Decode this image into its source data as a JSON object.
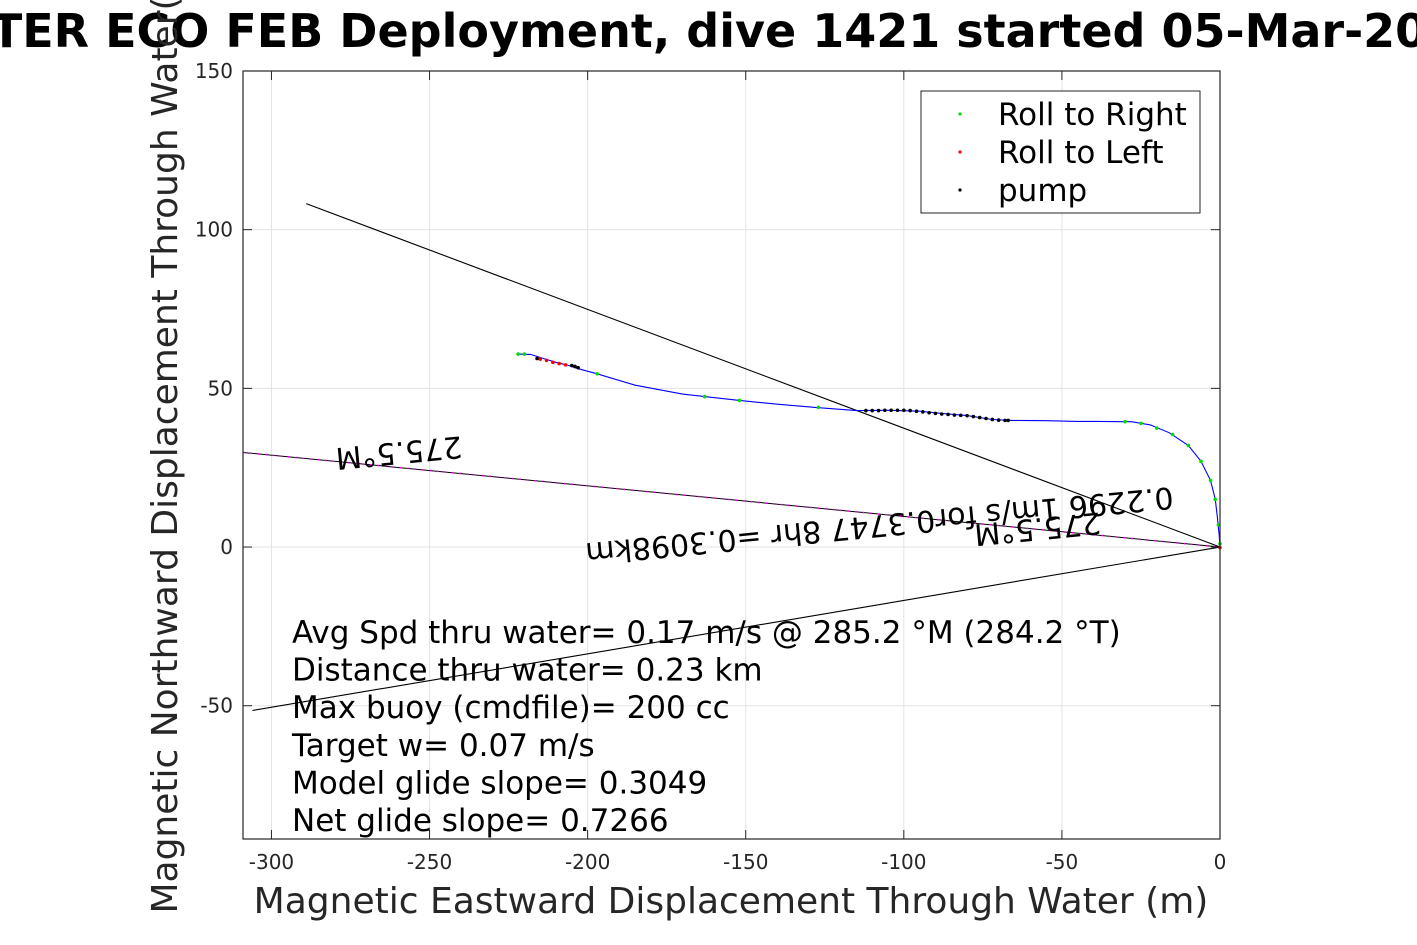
{
  "chart_data": {
    "type": "scatter",
    "title": "TER ECO FEB Deployment, dive 1421 started 05-Mar-20",
    "xlabel": "Magnetic Eastward Displacement Through Water (m)",
    "ylabel": "Magnetic Northward Displacement Through Water(",
    "xlim": [
      -309,
      0
    ],
    "ylim": [
      -92,
      150
    ],
    "xticks": [
      -300,
      -250,
      -200,
      -150,
      -100,
      -50,
      0
    ],
    "yticks": [
      -50,
      0,
      50,
      100,
      150
    ],
    "xtick_labels": [
      "-300",
      "-250",
      "-200",
      "-150",
      "-100",
      "-50",
      "0"
    ],
    "ytick_labels": [
      "-50",
      "0",
      "50",
      "100",
      "150"
    ],
    "grid": true,
    "legend_position": "top-right",
    "legend": [
      "Roll to Right",
      "Roll to Left",
      "pump"
    ],
    "colors": {
      "track": "#0000ff",
      "roll_right": "#00dd00",
      "roll_left": "#ff0000",
      "pump": "#000000",
      "heading_line": "#ff00ff",
      "reference_line": "#000000",
      "grid": "#e3e3e3",
      "axis": "#262626"
    },
    "track": {
      "x": [
        -222,
        -218,
        -214,
        -210,
        -206,
        -203,
        -197,
        -185,
        -170,
        -163,
        -152,
        -140,
        -128,
        -115,
        -105,
        -95,
        -88,
        -80,
        -72,
        -66,
        -55,
        -45,
        -38,
        -32,
        -28,
        -22,
        -16,
        -10,
        -6,
        -3,
        -1.5,
        -0.8,
        -0.3,
        0
      ],
      "y": [
        60.8,
        60.7,
        59.4,
        58.2,
        57.2,
        56.2,
        54.6,
        51,
        48.2,
        47.4,
        46.2,
        45,
        44,
        43,
        43.1,
        42.8,
        42.1,
        41.4,
        40.2,
        39.9,
        39.8,
        39.6,
        39.6,
        39.5,
        39.5,
        38.5,
        36,
        32,
        27,
        21,
        15,
        9,
        4,
        0
      ]
    },
    "roll_right": {
      "x": [
        -222,
        -220,
        -197,
        -163,
        -152,
        -127,
        -30,
        -25,
        -20,
        -15,
        -10,
        -6,
        -3,
        -1.5,
        -0.5,
        0
      ],
      "y": [
        60.8,
        60.8,
        54.6,
        47.4,
        46.2,
        44,
        39.5,
        39,
        37.5,
        35.5,
        32,
        27,
        21,
        15,
        7,
        1
      ]
    },
    "roll_left": {
      "x": [
        -215,
        -213,
        -211,
        -209,
        -207,
        0
      ],
      "y": [
        59.2,
        58.8,
        58.2,
        57.8,
        57.4,
        -0.2
      ]
    },
    "pump": {
      "x": [
        -216,
        -205,
        -204,
        -203,
        -112,
        -110,
        -108,
        -106,
        -104,
        -102,
        -100,
        -98,
        -96,
        -94,
        -92,
        -90,
        -88,
        -86,
        -84,
        -82,
        -80,
        -78,
        -76,
        -74,
        -72,
        -70,
        -68,
        -67
      ],
      "y": [
        59.4,
        57.2,
        56.9,
        56.5,
        43,
        43,
        43,
        43.1,
        43.1,
        43.1,
        43.1,
        43,
        42.8,
        42.6,
        42.3,
        42.1,
        41.9,
        41.8,
        41.6,
        41.5,
        41.4,
        41.1,
        40.8,
        40.5,
        40.2,
        40,
        39.9,
        39.9
      ]
    },
    "heading_line": {
      "x": [
        -309,
        0
      ],
      "y": [
        29.8,
        0
      ]
    },
    "reference_lines": [
      {
        "x": [
          -289,
          0
        ],
        "y": [
          108.2,
          0
        ]
      },
      {
        "x": [
          -306,
          0
        ],
        "y": [
          -51.5,
          0
        ]
      }
    ],
    "annotations": [
      {
        "text": "275.5°M",
        "x": -260,
        "y": 33,
        "rotate": 174.5
      },
      {
        "text": "0.2296 1m/s for0.3747 8hr =0.3098km",
        "x": -108,
        "y": 10,
        "rotate": 174.5
      },
      {
        "text": "275.5°M",
        "x": -58,
        "y": 9,
        "rotate": 174.5
      }
    ],
    "stats": [
      "Avg Spd thru water=  0.17 m/s @ 285.2 °M (284.2 °T)",
      "Distance thru water=  0.23 km",
      "Max buoy (cmdfile)= 200 cc",
      "Target w= 0.07 m/s",
      "Model glide slope= 0.3049",
      "Net glide slope= 0.7266"
    ]
  }
}
